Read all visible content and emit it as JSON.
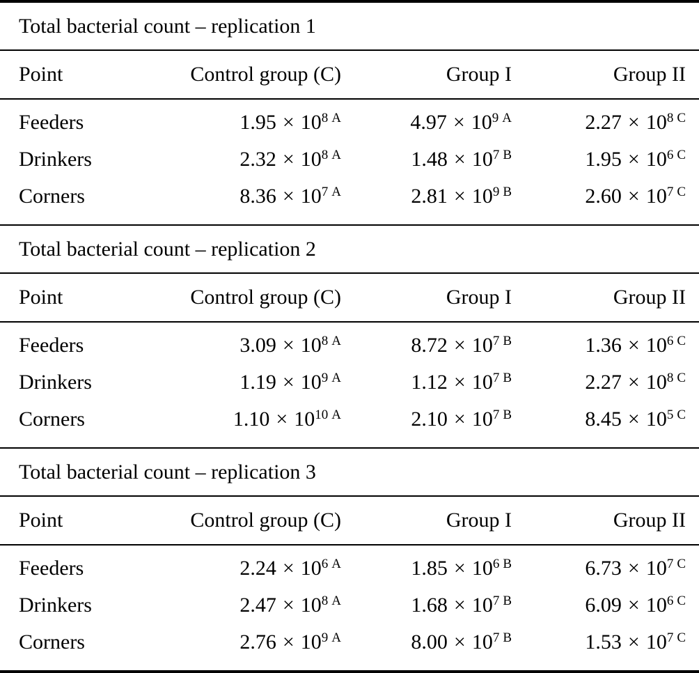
{
  "notation": {
    "times": "×",
    "base": "10"
  },
  "columns": {
    "point": "Point",
    "control": "Control group (C)",
    "group1": "Group I",
    "group2": "Group II"
  },
  "sections": [
    {
      "title": "Total bacterial count – replication 1",
      "rows": [
        {
          "point": "Feeders",
          "control": {
            "m": "1.95",
            "e": "8",
            "s": "A"
          },
          "group1": {
            "m": "4.97",
            "e": "9",
            "s": "A"
          },
          "group2": {
            "m": "2.27",
            "e": "8",
            "s": "C"
          }
        },
        {
          "point": "Drinkers",
          "control": {
            "m": "2.32",
            "e": "8",
            "s": "A"
          },
          "group1": {
            "m": "1.48",
            "e": "7",
            "s": "B"
          },
          "group2": {
            "m": "1.95",
            "e": "6",
            "s": "C"
          }
        },
        {
          "point": "Corners",
          "control": {
            "m": "8.36",
            "e": "7",
            "s": "A"
          },
          "group1": {
            "m": "2.81",
            "e": "9",
            "s": "B"
          },
          "group2": {
            "m": "2.60",
            "e": "7",
            "s": "C"
          }
        }
      ]
    },
    {
      "title": "Total bacterial count – replication 2",
      "rows": [
        {
          "point": "Feeders",
          "control": {
            "m": "3.09",
            "e": "8",
            "s": "A"
          },
          "group1": {
            "m": "8.72",
            "e": "7",
            "s": "B"
          },
          "group2": {
            "m": "1.36",
            "e": "6",
            "s": "C"
          }
        },
        {
          "point": "Drinkers",
          "control": {
            "m": "1.19",
            "e": "9",
            "s": "A"
          },
          "group1": {
            "m": "1.12",
            "e": "7",
            "s": "B"
          },
          "group2": {
            "m": "2.27",
            "e": "8",
            "s": "C"
          }
        },
        {
          "point": "Corners",
          "control": {
            "m": "1.10",
            "e": "10",
            "s": "A"
          },
          "group1": {
            "m": "2.10",
            "e": "7",
            "s": "B"
          },
          "group2": {
            "m": "8.45",
            "e": "5",
            "s": "C"
          }
        }
      ]
    },
    {
      "title": "Total bacterial count – replication 3",
      "rows": [
        {
          "point": "Feeders",
          "control": {
            "m": "2.24",
            "e": "6",
            "s": "A"
          },
          "group1": {
            "m": "1.85",
            "e": "6",
            "s": "B"
          },
          "group2": {
            "m": "6.73",
            "e": "7",
            "s": "C"
          }
        },
        {
          "point": "Drinkers",
          "control": {
            "m": "2.47",
            "e": "8",
            "s": "A"
          },
          "group1": {
            "m": "1.68",
            "e": "7",
            "s": "B"
          },
          "group2": {
            "m": "6.09",
            "e": "6",
            "s": "C"
          }
        },
        {
          "point": "Corners",
          "control": {
            "m": "2.76",
            "e": "9",
            "s": "A"
          },
          "group1": {
            "m": "8.00",
            "e": "7",
            "s": "B"
          },
          "group2": {
            "m": "1.53",
            "e": "7",
            "s": "C"
          }
        }
      ]
    }
  ],
  "colors": {
    "text": "#000000",
    "background": "#ffffff",
    "rule": "#000000"
  }
}
